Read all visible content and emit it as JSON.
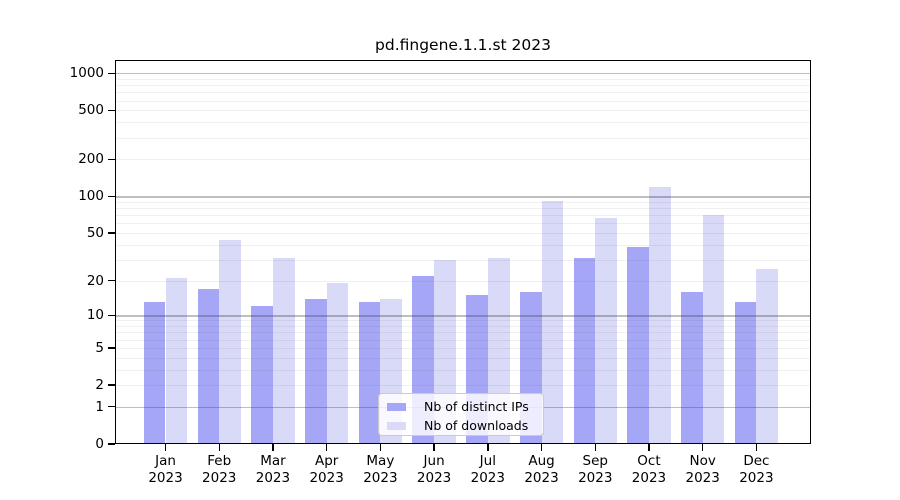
{
  "title": "pd.fingene.1.1.st 2023",
  "chart_data": {
    "type": "bar",
    "categories": [
      "Jan",
      "Feb",
      "Mar",
      "Apr",
      "May",
      "Jun",
      "Jul",
      "Aug",
      "Sep",
      "Oct",
      "Nov",
      "Dec"
    ],
    "year_label": "2023",
    "series": [
      {
        "name": "Nb of distinct IPs",
        "color": "#a6a6f6",
        "values": [
          13,
          17,
          12,
          14,
          13,
          22,
          15,
          16,
          31,
          38,
          16,
          13
        ]
      },
      {
        "name": "Nb of downloads",
        "color": "#d9d9f8",
        "values": [
          21,
          44,
          31,
          19,
          14,
          30,
          31,
          92,
          67,
          120,
          70,
          25
        ]
      }
    ],
    "yticks": [
      0,
      1,
      2,
      5,
      10,
      20,
      50,
      100,
      200,
      500,
      1000
    ],
    "yscale": "log1p",
    "ylim": [
      0,
      1285
    ],
    "xlabel": "",
    "ylabel": "",
    "grid": true,
    "legend_position": "lower center",
    "gridline_major_values": [
      1,
      10,
      100,
      1000
    ]
  }
}
